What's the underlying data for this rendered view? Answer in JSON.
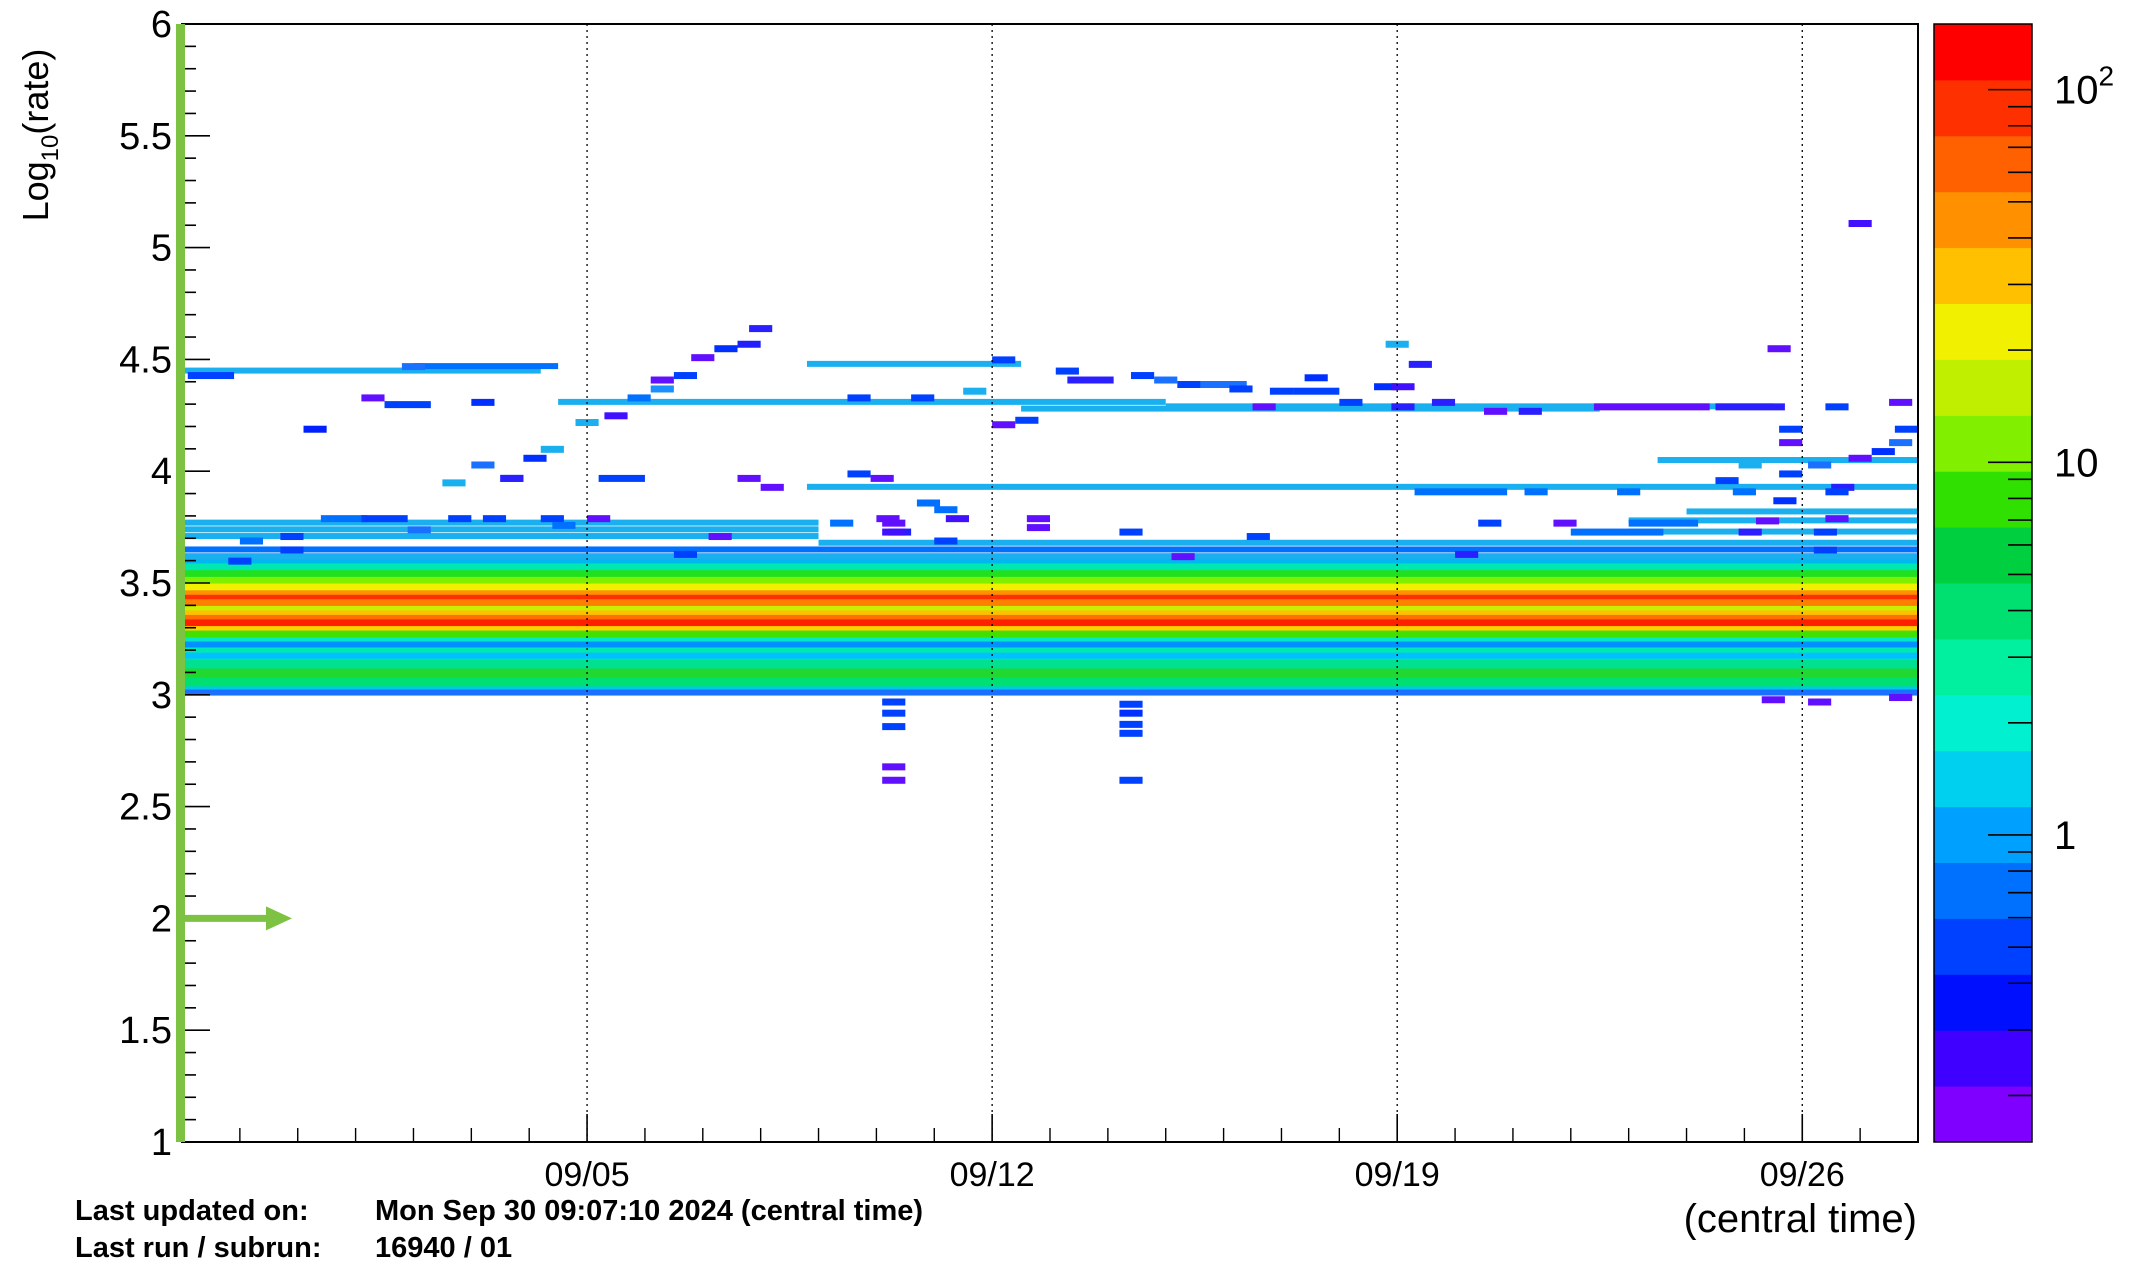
{
  "chart_data": {
    "type": "heatmap",
    "title": "",
    "ylabel": "Log",
    "ylabel_sub": "10",
    "ylabel_tail": "(rate)",
    "xlabel": "(central time)",
    "ylim": [
      1,
      6
    ],
    "y_ticks": [
      {
        "value": 1,
        "label": "1"
      },
      {
        "value": 1.5,
        "label": "1.5"
      },
      {
        "value": 2,
        "label": "2"
      },
      {
        "value": 2.5,
        "label": "2.5"
      },
      {
        "value": 3,
        "label": "3"
      },
      {
        "value": 3.5,
        "label": "3.5"
      },
      {
        "value": 4,
        "label": "4"
      },
      {
        "value": 4.5,
        "label": "4.5"
      },
      {
        "value": 5,
        "label": "5"
      },
      {
        "value": 5.5,
        "label": "5.5"
      },
      {
        "value": 6,
        "label": "6"
      }
    ],
    "x_range": [
      "08/29",
      "10/01"
    ],
    "x_ticks": [
      {
        "day": 7,
        "label": "09/05"
      },
      {
        "day": 14,
        "label": "09/12"
      },
      {
        "day": 21,
        "label": "09/19"
      },
      {
        "day": 28,
        "label": "09/26"
      }
    ],
    "x_days_span": 30,
    "grid": "vertical dotted at x ticks",
    "colorbar": {
      "scale": "log",
      "range": [
        0.15,
        150
      ],
      "labels": [
        {
          "value": 1,
          "label": "1"
        },
        {
          "value": 10,
          "label": "10"
        },
        {
          "value": 100,
          "label": "10",
          "sup": "2"
        }
      ],
      "colors": [
        "#8000ff",
        "#4000ff",
        "#0010ff",
        "#0040ff",
        "#0070ff",
        "#00a0ff",
        "#00d0f0",
        "#00f0d0",
        "#00f0a0",
        "#00e070",
        "#00d040",
        "#30e000",
        "#80f000",
        "#c0f000",
        "#f0f000",
        "#ffc000",
        "#ff9000",
        "#ff6000",
        "#ff3000",
        "#ff0000"
      ]
    },
    "threshold_marker": {
      "y": 2,
      "color": "#7dc242",
      "direction": "right"
    },
    "bands": [
      {
        "y0": 3.0,
        "y1": 3.04,
        "color": "#00c8e8"
      },
      {
        "y0": 3.04,
        "y1": 3.08,
        "color": "#00e070"
      },
      {
        "y0": 3.08,
        "y1": 3.12,
        "color": "#20d830"
      },
      {
        "y0": 3.12,
        "y1": 3.16,
        "color": "#00e090"
      },
      {
        "y0": 3.16,
        "y1": 3.21,
        "color": "#00e8b0"
      },
      {
        "y0": 3.21,
        "y1": 3.26,
        "color": "#00e8c8"
      },
      {
        "y0": 3.26,
        "y1": 3.29,
        "color": "#40e000"
      },
      {
        "y0": 3.29,
        "y1": 3.31,
        "color": "#ffd000"
      },
      {
        "y0": 3.31,
        "y1": 3.34,
        "color": "#ff2000"
      },
      {
        "y0": 3.34,
        "y1": 3.36,
        "color": "#ff7000"
      },
      {
        "y0": 3.36,
        "y1": 3.38,
        "color": "#ffc000"
      },
      {
        "y0": 3.38,
        "y1": 3.4,
        "color": "#c8f000"
      },
      {
        "y0": 3.4,
        "y1": 3.43,
        "color": "#ff8000"
      },
      {
        "y0": 3.43,
        "y1": 3.45,
        "color": "#ff3000"
      },
      {
        "y0": 3.45,
        "y1": 3.47,
        "color": "#ff9000"
      },
      {
        "y0": 3.47,
        "y1": 3.5,
        "color": "#f0f000"
      },
      {
        "y0": 3.5,
        "y1": 3.53,
        "color": "#80f000"
      },
      {
        "y0": 3.53,
        "y1": 3.56,
        "color": "#20e020"
      },
      {
        "y0": 3.56,
        "y1": 3.59,
        "color": "#00e8b0"
      },
      {
        "y0": 3.59,
        "y1": 3.62,
        "color": "#00b8f0"
      }
    ],
    "segments": [
      {
        "x0": 0.0,
        "x1": 6.2,
        "y": 4.45,
        "color": "#1ab0f0"
      },
      {
        "x0": 4.0,
        "x1": 6.5,
        "y": 4.47,
        "color": "#0070ff"
      },
      {
        "x0": 6.5,
        "x1": 17.0,
        "y": 4.31,
        "color": "#1ab0f0"
      },
      {
        "x0": 17.0,
        "x1": 27.5,
        "y": 4.29,
        "color": "#1ab0f0"
      },
      {
        "x0": 10.8,
        "x1": 14.5,
        "y": 4.48,
        "color": "#1ab0f0"
      },
      {
        "x0": 14.5,
        "x1": 24.5,
        "y": 4.28,
        "color": "#1ab0f0"
      },
      {
        "x0": 10.8,
        "x1": 30.0,
        "y": 3.93,
        "color": "#1ab0f0"
      },
      {
        "x0": 25.5,
        "x1": 30.0,
        "y": 4.05,
        "color": "#1ab0f0"
      },
      {
        "x0": 26.0,
        "x1": 30.0,
        "y": 3.82,
        "color": "#1ab0f0"
      },
      {
        "x0": 0.0,
        "x1": 11.0,
        "y": 3.77,
        "color": "#1ab0f0"
      },
      {
        "x0": 0.0,
        "x1": 11.0,
        "y": 3.74,
        "color": "#1ab0f0"
      },
      {
        "x0": 0.0,
        "x1": 11.0,
        "y": 3.71,
        "color": "#1ab0f0"
      },
      {
        "x0": 11.0,
        "x1": 30.0,
        "y": 3.68,
        "color": "#1ab0f0"
      },
      {
        "x0": 0.0,
        "x1": 30.0,
        "y": 3.65,
        "color": "#0070ff"
      },
      {
        "x0": 0.0,
        "x1": 30.0,
        "y": 3.62,
        "color": "#1ab0f0"
      },
      {
        "x0": 25.0,
        "x1": 30.0,
        "y": 3.78,
        "color": "#1ab0f0"
      },
      {
        "x0": 25.0,
        "x1": 30.0,
        "y": 3.73,
        "color": "#1ab0f0"
      },
      {
        "x0": 0.0,
        "x1": 30.0,
        "y": 3.01,
        "color": "#1a70ff"
      },
      {
        "x0": 0.0,
        "x1": 30.0,
        "y": 3.225,
        "color": "#0090ff"
      },
      {
        "x0": 0.0,
        "x1": 30.0,
        "y": 3.175,
        "color": "#00c0ff"
      }
    ],
    "cells": [
      {
        "x": 0.1,
        "w": 0.8,
        "y": 4.43,
        "color": "#0040ff"
      },
      {
        "x": 2.1,
        "w": 0.4,
        "y": 4.19,
        "color": "#0020ff"
      },
      {
        "x": 3.1,
        "w": 0.4,
        "y": 4.33,
        "color": "#6010ff"
      },
      {
        "x": 3.5,
        "w": 0.8,
        "y": 4.3,
        "color": "#0040ff"
      },
      {
        "x": 3.8,
        "w": 0.4,
        "y": 4.47,
        "color": "#1a70ff"
      },
      {
        "x": 5.5,
        "w": 0.4,
        "y": 3.97,
        "color": "#0040ff"
      },
      {
        "x": 5.5,
        "w": 0.4,
        "y": 3.97,
        "color": "#2a20ff"
      },
      {
        "x": 4.5,
        "w": 0.4,
        "y": 3.95,
        "color": "#1ab0f0"
      },
      {
        "x": 5.0,
        "w": 0.4,
        "y": 4.03,
        "color": "#1a70ff"
      },
      {
        "x": 5.9,
        "w": 0.4,
        "y": 4.06,
        "color": "#0030ff"
      },
      {
        "x": 6.2,
        "w": 0.4,
        "y": 4.1,
        "color": "#1ab0f0"
      },
      {
        "x": 5.0,
        "w": 0.4,
        "y": 4.31,
        "color": "#0030ff"
      },
      {
        "x": 5.2,
        "w": 0.4,
        "y": 3.79,
        "color": "#0040ff"
      },
      {
        "x": 7.3,
        "w": 0.4,
        "y": 4.25,
        "color": "#4010ff"
      },
      {
        "x": 7.7,
        "w": 0.4,
        "y": 4.33,
        "color": "#0070ff"
      },
      {
        "x": 8.1,
        "w": 0.4,
        "y": 4.37,
        "color": "#1a90ff"
      },
      {
        "x": 8.1,
        "w": 0.4,
        "y": 4.41,
        "color": "#6010ff"
      },
      {
        "x": 8.5,
        "w": 0.4,
        "y": 4.43,
        "color": "#0040ff"
      },
      {
        "x": 8.8,
        "w": 0.4,
        "y": 4.51,
        "color": "#6010ff"
      },
      {
        "x": 9.2,
        "w": 0.4,
        "y": 4.55,
        "color": "#0030ff"
      },
      {
        "x": 9.6,
        "w": 0.4,
        "y": 4.57,
        "color": "#2020ff"
      },
      {
        "x": 9.8,
        "w": 0.4,
        "y": 4.64,
        "color": "#2a20ff"
      },
      {
        "x": 6.8,
        "w": 0.4,
        "y": 4.22,
        "color": "#1ab0f0"
      },
      {
        "x": 7.2,
        "w": 0.8,
        "y": 3.97,
        "color": "#0040ff"
      },
      {
        "x": 9.6,
        "w": 0.4,
        "y": 3.97,
        "color": "#6010ff"
      },
      {
        "x": 10.0,
        "w": 0.4,
        "y": 3.93,
        "color": "#6010ff"
      },
      {
        "x": 11.5,
        "w": 0.4,
        "y": 3.99,
        "color": "#0040ff"
      },
      {
        "x": 11.9,
        "w": 0.4,
        "y": 3.97,
        "color": "#6010ff"
      },
      {
        "x": 12.7,
        "w": 0.4,
        "y": 3.86,
        "color": "#0070ff"
      },
      {
        "x": 13.5,
        "w": 0.4,
        "y": 4.36,
        "color": "#1ab0f0"
      },
      {
        "x": 11.5,
        "w": 0.4,
        "y": 4.33,
        "color": "#0040ff"
      },
      {
        "x": 12.6,
        "w": 0.4,
        "y": 4.33,
        "color": "#0040ff"
      },
      {
        "x": 14.0,
        "w": 0.4,
        "y": 4.5,
        "color": "#0040ff"
      },
      {
        "x": 14.0,
        "w": 0.4,
        "y": 4.21,
        "color": "#6010ff"
      },
      {
        "x": 14.4,
        "w": 0.4,
        "y": 4.23,
        "color": "#0040ff"
      },
      {
        "x": 15.1,
        "w": 0.4,
        "y": 4.45,
        "color": "#0040ff"
      },
      {
        "x": 15.3,
        "w": 0.8,
        "y": 4.41,
        "color": "#2a20ff"
      },
      {
        "x": 16.4,
        "w": 0.4,
        "y": 4.43,
        "color": "#0040ff"
      },
      {
        "x": 16.8,
        "w": 0.4,
        "y": 4.41,
        "color": "#1a70ff"
      },
      {
        "x": 17.2,
        "w": 0.4,
        "y": 4.39,
        "color": "#0040ff"
      },
      {
        "x": 17.6,
        "w": 0.8,
        "y": 4.39,
        "color": "#1a70ff"
      },
      {
        "x": 18.1,
        "w": 0.4,
        "y": 4.37,
        "color": "#0040ff"
      },
      {
        "x": 18.5,
        "w": 0.4,
        "y": 4.29,
        "color": "#6010ff"
      },
      {
        "x": 18.8,
        "w": 0.4,
        "y": 4.36,
        "color": "#0040ff"
      },
      {
        "x": 19.2,
        "w": 0.8,
        "y": 4.36,
        "color": "#0040ff"
      },
      {
        "x": 20.0,
        "w": 0.4,
        "y": 4.31,
        "color": "#0040ff"
      },
      {
        "x": 20.6,
        "w": 0.4,
        "y": 4.38,
        "color": "#0030ff"
      },
      {
        "x": 20.9,
        "w": 0.4,
        "y": 4.38,
        "color": "#4010ff"
      },
      {
        "x": 20.8,
        "w": 0.4,
        "y": 4.57,
        "color": "#1ab0f0"
      },
      {
        "x": 21.2,
        "w": 0.4,
        "y": 4.48,
        "color": "#2a20ff"
      },
      {
        "x": 21.6,
        "w": 0.4,
        "y": 4.31,
        "color": "#2a20ff"
      },
      {
        "x": 22.5,
        "w": 0.4,
        "y": 4.27,
        "color": "#6010ff"
      },
      {
        "x": 23.1,
        "w": 0.4,
        "y": 4.27,
        "color": "#2a20ff"
      },
      {
        "x": 24.4,
        "w": 2.0,
        "y": 4.29,
        "color": "#6010ff"
      },
      {
        "x": 26.5,
        "w": 1.2,
        "y": 4.29,
        "color": "#2a20ff"
      },
      {
        "x": 28.4,
        "w": 0.4,
        "y": 4.29,
        "color": "#0040ff"
      },
      {
        "x": 28.8,
        "w": 0.4,
        "y": 4.06,
        "color": "#6010ff"
      },
      {
        "x": 29.2,
        "w": 0.4,
        "y": 4.09,
        "color": "#0030ff"
      },
      {
        "x": 29.5,
        "w": 0.4,
        "y": 4.13,
        "color": "#1a70ff"
      },
      {
        "x": 29.6,
        "w": 0.4,
        "y": 4.19,
        "color": "#0040ff"
      },
      {
        "x": 29.5,
        "w": 0.4,
        "y": 4.31,
        "color": "#6010ff"
      },
      {
        "x": 26.9,
        "w": 0.4,
        "y": 4.03,
        "color": "#1ab0f0"
      },
      {
        "x": 27.6,
        "w": 0.4,
        "y": 4.13,
        "color": "#6010ff"
      },
      {
        "x": 27.6,
        "w": 0.4,
        "y": 4.19,
        "color": "#0040ff"
      },
      {
        "x": 27.6,
        "w": 0.4,
        "y": 3.99,
        "color": "#0040ff"
      },
      {
        "x": 27.5,
        "w": 0.4,
        "y": 3.87,
        "color": "#0030ff"
      },
      {
        "x": 26.5,
        "w": 0.4,
        "y": 3.96,
        "color": "#0040ff"
      },
      {
        "x": 27.2,
        "w": 0.4,
        "y": 3.78,
        "color": "#6010ff"
      },
      {
        "x": 28.1,
        "w": 0.4,
        "y": 4.03,
        "color": "#1a70ff"
      },
      {
        "x": 28.5,
        "w": 0.4,
        "y": 3.93,
        "color": "#2a20ff"
      },
      {
        "x": 28.8,
        "w": 0.4,
        "y": 5.11,
        "color": "#4010ff"
      },
      {
        "x": 27.4,
        "w": 0.4,
        "y": 4.55,
        "color": "#6010ff"
      },
      {
        "x": 28.4,
        "w": 0.4,
        "y": 3.79,
        "color": "#6010ff"
      },
      {
        "x": 28.4,
        "w": 0.4,
        "y": 3.91,
        "color": "#0040ff"
      },
      {
        "x": 28.2,
        "w": 0.4,
        "y": 3.73,
        "color": "#0040ff"
      },
      {
        "x": 28.2,
        "w": 0.4,
        "y": 3.65,
        "color": "#0040ff"
      },
      {
        "x": 20.9,
        "w": 0.4,
        "y": 4.29,
        "color": "#2a20ff"
      },
      {
        "x": 19.4,
        "w": 0.4,
        "y": 4.42,
        "color": "#0030ff"
      },
      {
        "x": 21.3,
        "w": 1.6,
        "y": 3.91,
        "color": "#0070ff"
      },
      {
        "x": 23.2,
        "w": 0.4,
        "y": 3.91,
        "color": "#0070ff"
      },
      {
        "x": 24.8,
        "w": 0.4,
        "y": 3.91,
        "color": "#0070ff"
      },
      {
        "x": 26.8,
        "w": 0.4,
        "y": 3.91,
        "color": "#0070ff"
      },
      {
        "x": 23.7,
        "w": 0.4,
        "y": 3.77,
        "color": "#6010ff"
      },
      {
        "x": 25.0,
        "w": 1.2,
        "y": 3.77,
        "color": "#0070ff"
      },
      {
        "x": 22.4,
        "w": 0.4,
        "y": 3.77,
        "color": "#0040ff"
      },
      {
        "x": 26.9,
        "w": 0.4,
        "y": 3.73,
        "color": "#2a20ff"
      },
      {
        "x": 12.0,
        "w": 0.4,
        "y": 3.79,
        "color": "#6010ff"
      },
      {
        "x": 13.2,
        "w": 0.4,
        "y": 3.79,
        "color": "#4010ff"
      },
      {
        "x": 11.2,
        "w": 0.4,
        "y": 3.77,
        "color": "#0070ff"
      },
      {
        "x": 13.0,
        "w": 0.4,
        "y": 3.83,
        "color": "#0070ff"
      },
      {
        "x": 14.6,
        "w": 0.4,
        "y": 3.75,
        "color": "#6010ff"
      },
      {
        "x": 14.6,
        "w": 0.4,
        "y": 3.79,
        "color": "#6010ff"
      },
      {
        "x": 18.4,
        "w": 0.4,
        "y": 3.71,
        "color": "#0040ff"
      },
      {
        "x": 17.1,
        "w": 0.4,
        "y": 3.62,
        "color": "#6010ff"
      },
      {
        "x": 22.0,
        "w": 0.4,
        "y": 3.63,
        "color": "#2a20ff"
      },
      {
        "x": 24.0,
        "w": 1.6,
        "y": 3.73,
        "color": "#0070ff"
      },
      {
        "x": 1.0,
        "w": 0.4,
        "y": 3.69,
        "color": "#0070ff"
      },
      {
        "x": 1.7,
        "w": 0.4,
        "y": 3.71,
        "color": "#0040ff"
      },
      {
        "x": 2.4,
        "w": 0.8,
        "y": 3.79,
        "color": "#0070ff"
      },
      {
        "x": 3.1,
        "w": 0.8,
        "y": 3.79,
        "color": "#0040ff"
      },
      {
        "x": 4.6,
        "w": 0.4,
        "y": 3.79,
        "color": "#0040ff"
      },
      {
        "x": 6.2,
        "w": 0.4,
        "y": 3.79,
        "color": "#0040ff"
      },
      {
        "x": 7.0,
        "w": 0.4,
        "y": 3.79,
        "color": "#6010ff"
      },
      {
        "x": 6.4,
        "w": 0.4,
        "y": 3.76,
        "color": "#0070ff"
      },
      {
        "x": 8.5,
        "w": 0.4,
        "y": 3.63,
        "color": "#0040ff"
      },
      {
        "x": 9.1,
        "w": 0.4,
        "y": 3.71,
        "color": "#6010ff"
      },
      {
        "x": 12.2,
        "w": 0.4,
        "y": 3.73,
        "color": "#2020ff"
      },
      {
        "x": 13.0,
        "w": 0.4,
        "y": 3.69,
        "color": "#0040ff"
      },
      {
        "x": 3.9,
        "w": 0.4,
        "y": 3.74,
        "color": "#1a70ff"
      },
      {
        "x": 0.8,
        "w": 0.4,
        "y": 3.6,
        "color": "#0040ff"
      },
      {
        "x": 1.7,
        "w": 0.4,
        "y": 3.65,
        "color": "#0040ff"
      },
      {
        "x": 12.1,
        "w": 0.4,
        "y": 2.92,
        "color": "#0040ff"
      },
      {
        "x": 12.1,
        "w": 0.4,
        "y": 2.97,
        "color": "#0040ff"
      },
      {
        "x": 12.1,
        "w": 0.4,
        "y": 2.86,
        "color": "#0040ff"
      },
      {
        "x": 12.1,
        "w": 0.4,
        "y": 2.68,
        "color": "#6010ff"
      },
      {
        "x": 12.1,
        "w": 0.4,
        "y": 2.62,
        "color": "#6010ff"
      },
      {
        "x": 12.1,
        "w": 0.4,
        "y": 3.77,
        "color": "#6010ff"
      },
      {
        "x": 12.1,
        "w": 0.4,
        "y": 3.73,
        "color": "#4010ff"
      },
      {
        "x": 16.2,
        "w": 0.4,
        "y": 2.92,
        "color": "#0030ff"
      },
      {
        "x": 16.2,
        "w": 0.4,
        "y": 2.96,
        "color": "#0040ff"
      },
      {
        "x": 16.2,
        "w": 0.4,
        "y": 2.87,
        "color": "#0040ff"
      },
      {
        "x": 16.2,
        "w": 0.4,
        "y": 2.83,
        "color": "#0040ff"
      },
      {
        "x": 16.2,
        "w": 0.4,
        "y": 2.62,
        "color": "#0040ff"
      },
      {
        "x": 16.2,
        "w": 0.4,
        "y": 3.73,
        "color": "#0040ff"
      },
      {
        "x": 28.1,
        "w": 0.4,
        "y": 2.97,
        "color": "#6010ff"
      },
      {
        "x": 29.5,
        "w": 0.4,
        "y": 2.99,
        "color": "#6010ff"
      },
      {
        "x": 27.3,
        "w": 0.4,
        "y": 2.98,
        "color": "#6010ff"
      }
    ]
  },
  "footer": {
    "updated_label": "Last updated on:",
    "updated_value": "Mon Sep 30 09:07:10 2024 (central time)",
    "run_label": "Last run / subrun:",
    "run_value": "16940 / 01"
  }
}
